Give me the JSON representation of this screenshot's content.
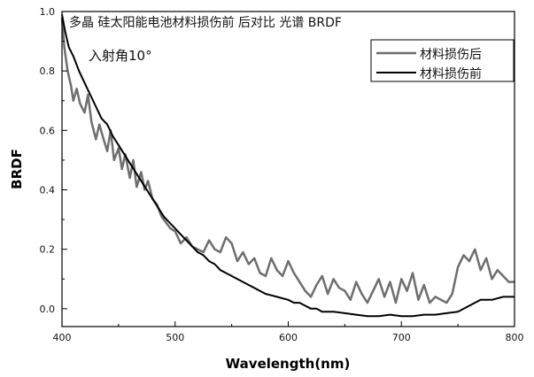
{
  "chart_data": {
    "type": "line",
    "title": "多晶 硅太阳能电池材料损伤前 后对比 光谱 BRDF",
    "annotation": "入射角10°",
    "xlabel": "Wavelength(nm)",
    "ylabel": "BRDF",
    "xlim": [
      400,
      800
    ],
    "ylim": [
      -0.06,
      1.0
    ],
    "xticks": [
      400,
      500,
      600,
      700,
      800
    ],
    "yticks": [
      0.0,
      0.2,
      0.4,
      0.6,
      0.8,
      1.0
    ],
    "xtick_labels": [
      "400",
      "500",
      "600",
      "700",
      "800"
    ],
    "ytick_labels": [
      "0.0",
      "0.2",
      "0.4",
      "0.6",
      "0.8",
      "1.0"
    ],
    "legend_position": "top-right",
    "grid": false,
    "series": [
      {
        "name": "材料损伤后",
        "color": "#6e6e6e",
        "x": [
          400,
          402,
          405,
          408,
          410,
          413,
          416,
          420,
          423,
          426,
          430,
          433,
          436,
          440,
          443,
          446,
          450,
          453,
          456,
          460,
          463,
          466,
          470,
          473,
          476,
          480,
          484,
          488,
          492,
          496,
          500,
          505,
          510,
          515,
          520,
          525,
          530,
          535,
          540,
          545,
          550,
          555,
          560,
          565,
          570,
          575,
          580,
          585,
          590,
          595,
          600,
          605,
          610,
          615,
          620,
          625,
          630,
          635,
          640,
          645,
          650,
          655,
          660,
          665,
          670,
          675,
          680,
          685,
          690,
          695,
          700,
          705,
          710,
          715,
          720,
          725,
          730,
          735,
          740,
          745,
          750,
          755,
          760,
          765,
          770,
          775,
          780,
          785,
          790,
          795,
          800
        ],
        "y": [
          0.98,
          0.88,
          0.8,
          0.75,
          0.7,
          0.74,
          0.69,
          0.66,
          0.72,
          0.63,
          0.57,
          0.62,
          0.58,
          0.53,
          0.6,
          0.5,
          0.54,
          0.47,
          0.52,
          0.44,
          0.5,
          0.41,
          0.46,
          0.4,
          0.43,
          0.37,
          0.35,
          0.31,
          0.29,
          0.27,
          0.26,
          0.22,
          0.24,
          0.21,
          0.2,
          0.19,
          0.23,
          0.2,
          0.19,
          0.24,
          0.22,
          0.16,
          0.19,
          0.15,
          0.17,
          0.12,
          0.11,
          0.17,
          0.13,
          0.11,
          0.16,
          0.12,
          0.09,
          0.06,
          0.04,
          0.08,
          0.11,
          0.05,
          0.1,
          0.07,
          0.06,
          0.03,
          0.09,
          0.05,
          0.02,
          0.06,
          0.1,
          0.04,
          0.09,
          0.02,
          0.1,
          0.06,
          0.12,
          0.03,
          0.08,
          0.02,
          0.04,
          0.03,
          0.02,
          0.05,
          0.14,
          0.18,
          0.16,
          0.2,
          0.13,
          0.17,
          0.1,
          0.13,
          0.11,
          0.09,
          0.09
        ]
      },
      {
        "name": "材料损伤前",
        "color": "#000000",
        "x": [
          400,
          403,
          406,
          410,
          415,
          420,
          425,
          430,
          435,
          440,
          445,
          450,
          455,
          460,
          465,
          470,
          475,
          480,
          485,
          490,
          495,
          500,
          505,
          510,
          515,
          520,
          525,
          530,
          535,
          540,
          545,
          550,
          555,
          560,
          565,
          570,
          575,
          580,
          585,
          590,
          595,
          600,
          605,
          610,
          615,
          620,
          625,
          630,
          640,
          650,
          660,
          670,
          680,
          690,
          700,
          710,
          720,
          730,
          740,
          750,
          760,
          770,
          780,
          790,
          800
        ],
        "y": [
          0.99,
          0.93,
          0.88,
          0.85,
          0.8,
          0.76,
          0.72,
          0.68,
          0.64,
          0.62,
          0.58,
          0.55,
          0.52,
          0.49,
          0.46,
          0.43,
          0.4,
          0.37,
          0.34,
          0.31,
          0.29,
          0.27,
          0.25,
          0.23,
          0.21,
          0.19,
          0.18,
          0.16,
          0.15,
          0.13,
          0.12,
          0.11,
          0.1,
          0.09,
          0.08,
          0.07,
          0.06,
          0.05,
          0.045,
          0.04,
          0.035,
          0.03,
          0.02,
          0.02,
          0.01,
          0.0,
          0.0,
          -0.01,
          -0.01,
          -0.015,
          -0.02,
          -0.025,
          -0.025,
          -0.02,
          -0.025,
          -0.025,
          -0.02,
          -0.02,
          -0.015,
          -0.01,
          0.01,
          0.03,
          0.03,
          0.04,
          0.04
        ]
      }
    ]
  }
}
